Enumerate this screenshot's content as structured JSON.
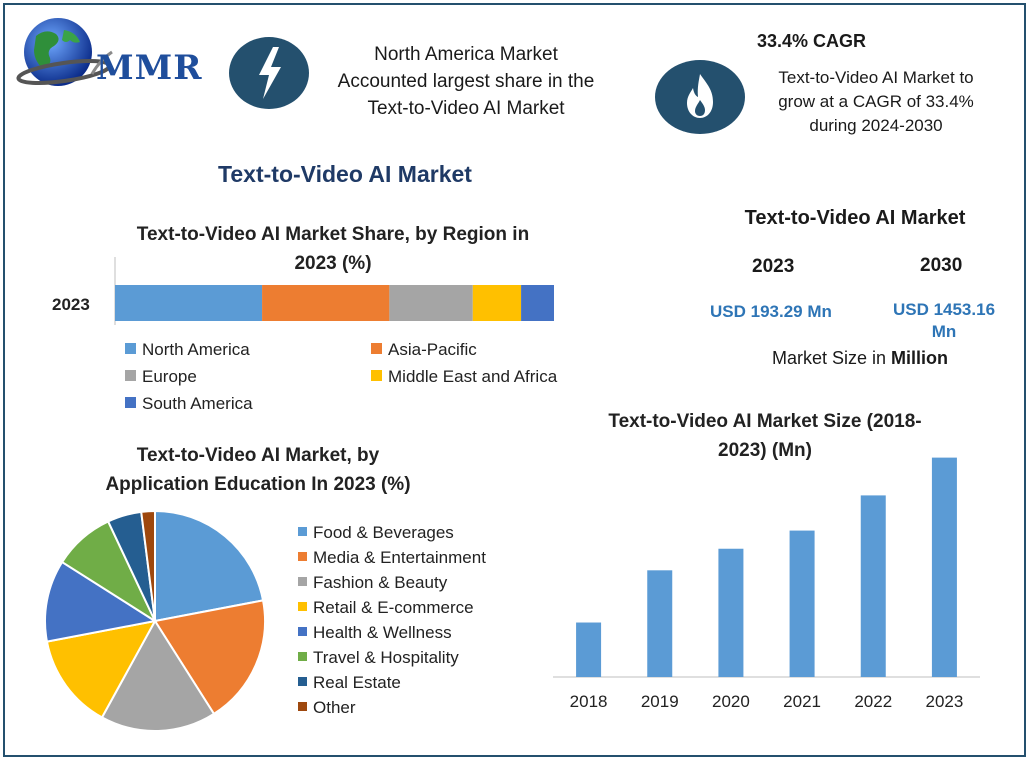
{
  "header": {
    "logo_text": "MMR",
    "na_text_lines": [
      "North America Market",
      "Accounted largest share in the",
      "Text-to-Video AI Market"
    ],
    "cagr_title": "33.4% CAGR",
    "cagr_text_lines": [
      "Text-to-Video AI Market to",
      "grow at a CAGR of 33.4%",
      "during 2024-2030"
    ]
  },
  "main_title": "Text-to-Video AI Market",
  "market_size_panel": {
    "title": "Text-to-Video AI Market",
    "year_1": "2023",
    "year_2": "2030",
    "value_1": "USD 193.29 Mn",
    "value_2_line1": "USD 1453.16",
    "value_2_line2": "Mn",
    "caption_prefix": "Market Size in ",
    "caption_bold": "Million"
  },
  "colors": {
    "frame": "#24506e",
    "icon_circle": "#24506e",
    "title_blue": "#1f3a66",
    "usd_blue": "#2e75b6"
  },
  "chart_data": [
    {
      "type": "bar",
      "orientation": "horizontal-stacked",
      "title_lines": [
        "Text-to-Video AI Market Share, by Region in",
        "2023 (%)"
      ],
      "categories": [
        "2023"
      ],
      "series": [
        {
          "name": "North America",
          "values": [
            33.5
          ],
          "color": "#5b9bd5"
        },
        {
          "name": "Asia-Pacific",
          "values": [
            29
          ],
          "color": "#ed7d31"
        },
        {
          "name": "Europe",
          "values": [
            19
          ],
          "color": "#a5a5a5"
        },
        {
          "name": "Middle East and Africa",
          "values": [
            11
          ],
          "color": "#ffc000"
        },
        {
          "name": "South America",
          "values": [
            7.5
          ],
          "color": "#4472c4"
        }
      ],
      "legend_position": "bottom"
    },
    {
      "type": "pie",
      "title_lines": [
        "Text-to-Video AI Market, by",
        "Application Education In 2023 (%)"
      ],
      "slices": [
        {
          "label": "Food & Beverages",
          "value": 22,
          "color": "#5b9bd5"
        },
        {
          "label": "Media & Entertainment",
          "value": 19,
          "color": "#ed7d31"
        },
        {
          "label": "Fashion & Beauty",
          "value": 17,
          "color": "#a5a5a5"
        },
        {
          "label": "Retail & E-commerce",
          "value": 14,
          "color": "#ffc000"
        },
        {
          "label": "Health & Wellness",
          "value": 12,
          "color": "#4472c4"
        },
        {
          "label": "Travel & Hospitality",
          "value": 9,
          "color": "#70ad47"
        },
        {
          "label": "Real Estate",
          "value": 5,
          "color": "#255e91"
        },
        {
          "label": "Other",
          "value": 2,
          "color": "#9e480e"
        }
      ],
      "legend_position": "right"
    },
    {
      "type": "bar",
      "title_lines": [
        "Text-to-Video AI Market Size (2018-",
        "2023) (Mn)"
      ],
      "categories": [
        "2018",
        "2019",
        "2020",
        "2021",
        "2022",
        "2023"
      ],
      "values": [
        48,
        94,
        113,
        129,
        160,
        193.29
      ],
      "color": "#5b9bd5",
      "ylim": [
        0,
        200
      ],
      "grid": false
    }
  ]
}
